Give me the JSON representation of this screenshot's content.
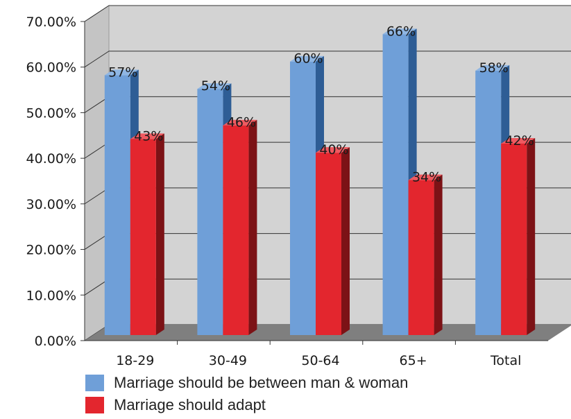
{
  "colors": {
    "series1": "#6f9fd8",
    "series1_side": "#2e5d95",
    "series2": "#e3262e",
    "series2_side": "#7c1216",
    "wall": "#d3d3d3",
    "floor": "#7f7f7f",
    "grid": "#333333"
  },
  "chart_data": {
    "type": "bar",
    "title": "",
    "xlabel": "",
    "ylabel": "",
    "ylim": [
      0,
      70
    ],
    "ytick_values": [
      0,
      10,
      20,
      30,
      40,
      50,
      60,
      70
    ],
    "ytick_labels": [
      "0.00%",
      "10.00%",
      "20.00%",
      "30.00%",
      "40.00%",
      "50.00%",
      "60.00%",
      "70.00%"
    ],
    "categories": [
      "18-29",
      "30-49",
      "50-64",
      "65+",
      "Total"
    ],
    "series": [
      {
        "name": "Marriage should be between man & woman",
        "values": [
          57,
          54,
          60,
          66,
          58
        ],
        "labels": [
          "57%",
          "54%",
          "60%",
          "66%",
          "58%"
        ]
      },
      {
        "name": "Marriage should adapt",
        "values": [
          43,
          46,
          40,
          34,
          42
        ],
        "labels": [
          "43%",
          "46%",
          "40%",
          "34%",
          "42%"
        ]
      }
    ],
    "grid": true,
    "legend_position": "bottom"
  }
}
